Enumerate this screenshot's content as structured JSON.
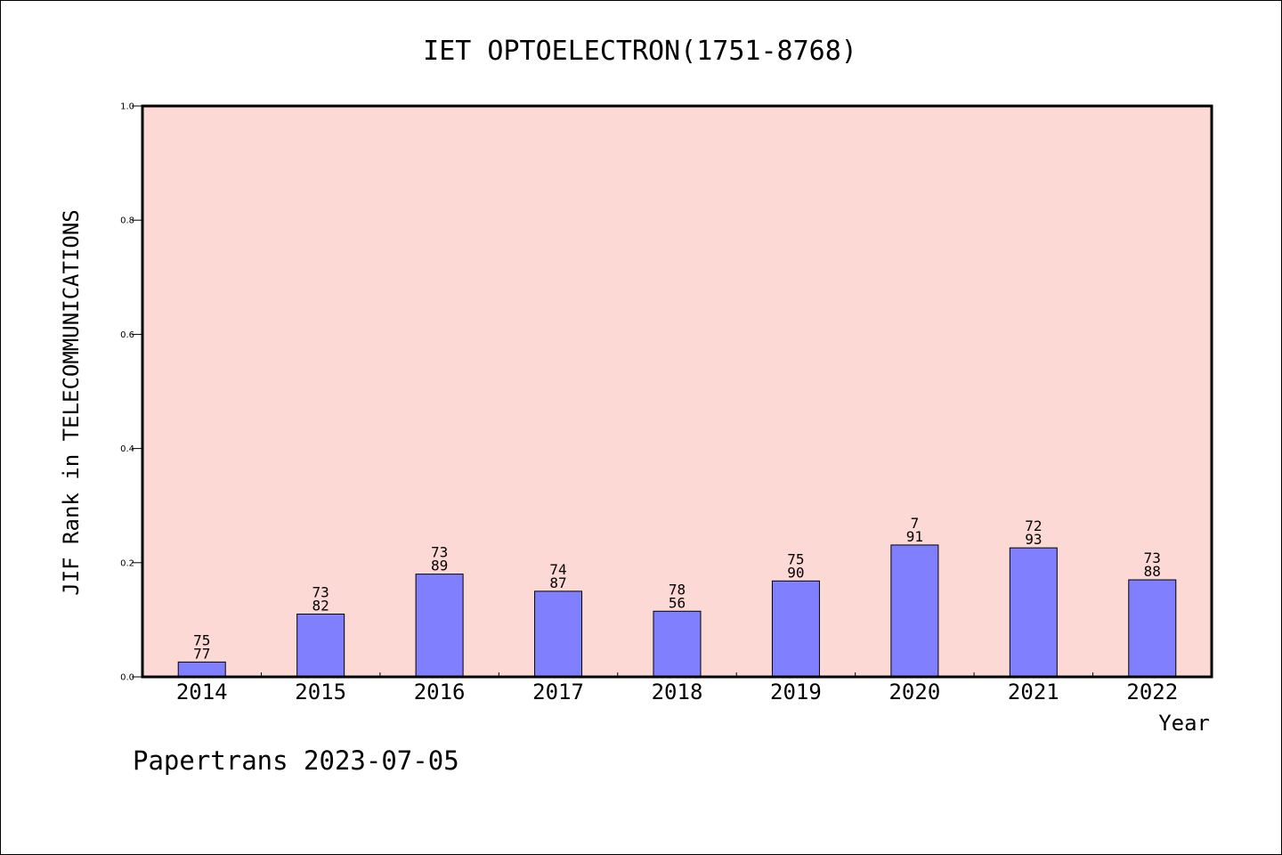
{
  "chart_data": {
    "type": "bar",
    "title": "IET OPTOELECTRON(1751-8768)",
    "xlabel": "Year",
    "ylabel": "JIF Rank in TELECOMMUNICATIONS",
    "ylim": [
      0,
      1.0
    ],
    "y_ticks": [
      "0.0",
      "0.2",
      "0.4",
      "0.6",
      "0.8",
      "1.0"
    ],
    "categories": [
      "2014",
      "2015",
      "2016",
      "2017",
      "2018",
      "2019",
      "2020",
      "2021",
      "2022"
    ],
    "values": [
      0.026,
      0.11,
      0.18,
      0.15,
      0.115,
      0.168,
      0.231,
      0.226,
      0.17
    ],
    "labels_top": [
      "75",
      "73",
      "73",
      "74",
      "78",
      "75",
      "7",
      "72",
      "73"
    ],
    "labels_bottom": [
      "77",
      "82",
      "89",
      "87",
      "56",
      "90",
      "91",
      "93",
      "88"
    ],
    "colors": {
      "plot_bg": "#fdd9d6",
      "bar": "#8080ff",
      "axis": "#000000"
    },
    "grid": false,
    "legend": "none"
  },
  "footer": {
    "text": "Papertrans 2023-07-05"
  }
}
